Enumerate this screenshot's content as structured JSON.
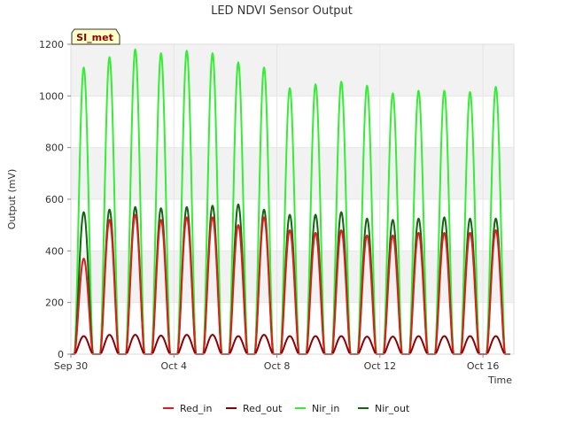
{
  "chart_data": {
    "type": "line",
    "title": "LED NDVI Sensor Output",
    "xlabel": "Time",
    "ylabel": "Output (mV)",
    "badge": "SI_met",
    "ylim": [
      0,
      1200
    ],
    "yticks": [
      0,
      200,
      400,
      600,
      800,
      1000,
      1200
    ],
    "xlim_days": [
      0,
      17.2
    ],
    "xticks": [
      {
        "day": 0,
        "label": "Sep 30"
      },
      {
        "day": 4,
        "label": "Oct 4"
      },
      {
        "day": 8,
        "label": "Oct 8"
      },
      {
        "day": 12,
        "label": "Oct 12"
      },
      {
        "day": 16,
        "label": "Oct 16"
      }
    ],
    "days": [
      0.5,
      1.5,
      2.5,
      3.5,
      4.5,
      5.5,
      6.5,
      7.5,
      8.5,
      9.5,
      10.5,
      11.5,
      12.5,
      13.5,
      14.5,
      15.5,
      16.5
    ],
    "series": [
      {
        "name": "Red_in",
        "color": "#e41a1c",
        "peaks": [
          370,
          520,
          540,
          520,
          530,
          530,
          500,
          530,
          480,
          470,
          480,
          460,
          460,
          470,
          470,
          470,
          480
        ]
      },
      {
        "name": "Red_out",
        "color": "#8b0000",
        "peaks": [
          70,
          75,
          75,
          72,
          75,
          75,
          70,
          75,
          70,
          70,
          70,
          68,
          68,
          70,
          70,
          70,
          70
        ]
      },
      {
        "name": "Nir_in",
        "color": "#33ee33",
        "peaks": [
          1110,
          1150,
          1180,
          1165,
          1175,
          1165,
          1130,
          1110,
          1030,
          1045,
          1055,
          1040,
          1010,
          1020,
          1020,
          1015,
          1035
        ]
      },
      {
        "name": "Nir_out",
        "color": "#116611",
        "peaks": [
          550,
          560,
          570,
          565,
          570,
          575,
          580,
          560,
          540,
          540,
          550,
          525,
          520,
          525,
          530,
          525,
          525
        ]
      }
    ]
  }
}
